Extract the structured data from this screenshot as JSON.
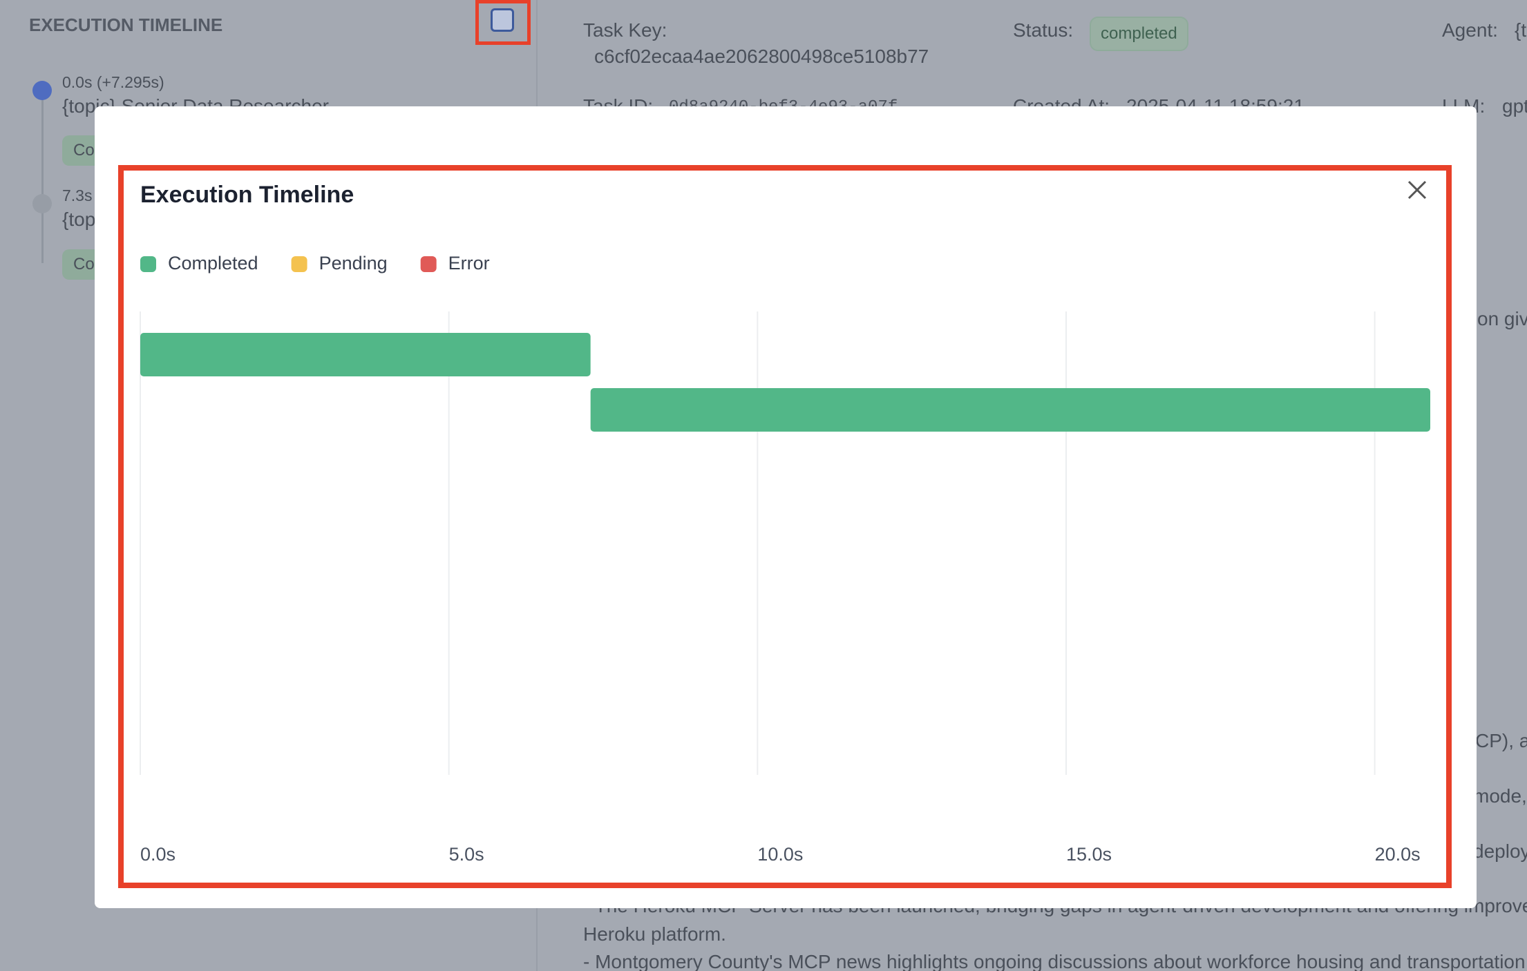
{
  "sidebar": {
    "title": "EXECUTION TIMELINE",
    "items": [
      {
        "time": "0.0s (+7.295s)",
        "label": "{topic} Senior Data Researcher",
        "badge": "Completed"
      },
      {
        "time": "7.3s",
        "label": "{topic} Reporting Analyst",
        "badge": "Completed"
      }
    ]
  },
  "details": {
    "task_key_label": "Task Key:",
    "task_key": "c6cf02ecaa4ae2062800498ce5108b77",
    "status_label": "Status:",
    "status": "completed",
    "agent_label": "Agent:",
    "agent": "{topic}",
    "task_id_label": "Task ID:",
    "task_id": "0d8a9240-bef3-4e93-a07f",
    "created_label": "Created At:",
    "created": "2025-04-11 18:59:21",
    "llm_label": "LLM:",
    "llm": "gpt"
  },
  "content": {
    "fragments": [
      "on giv",
      "CP), a",
      "mode,",
      "deploy"
    ],
    "lines": [
      "- The Heroku MCP Server has been launched, bridging gaps in agent-driven development and offering improve",
      "Heroku platform.",
      "- Montgomery County's MCP news highlights ongoing discussions about workforce housing and transportation"
    ]
  },
  "chart_data": {
    "type": "gantt",
    "title": "Execution Timeline",
    "series": [
      {
        "name": "Completed",
        "color": "#52b788",
        "starts": [
          0,
          7.295
        ],
        "ends": [
          7.295,
          20.9
        ]
      },
      {
        "name": "Pending",
        "color": "#f4c24f",
        "starts": [],
        "ends": []
      },
      {
        "name": "Error",
        "color": "#e05a57",
        "starts": [],
        "ends": []
      }
    ],
    "xlim": [
      0,
      20.9
    ],
    "xticks": [
      {
        "value": 0,
        "label": "0.0s"
      },
      {
        "value": 5,
        "label": "5.0s"
      },
      {
        "value": 10,
        "label": "10.0s"
      },
      {
        "value": 15,
        "label": "15.0s"
      },
      {
        "value": 20,
        "label": "20.0s"
      }
    ],
    "grid": true
  }
}
